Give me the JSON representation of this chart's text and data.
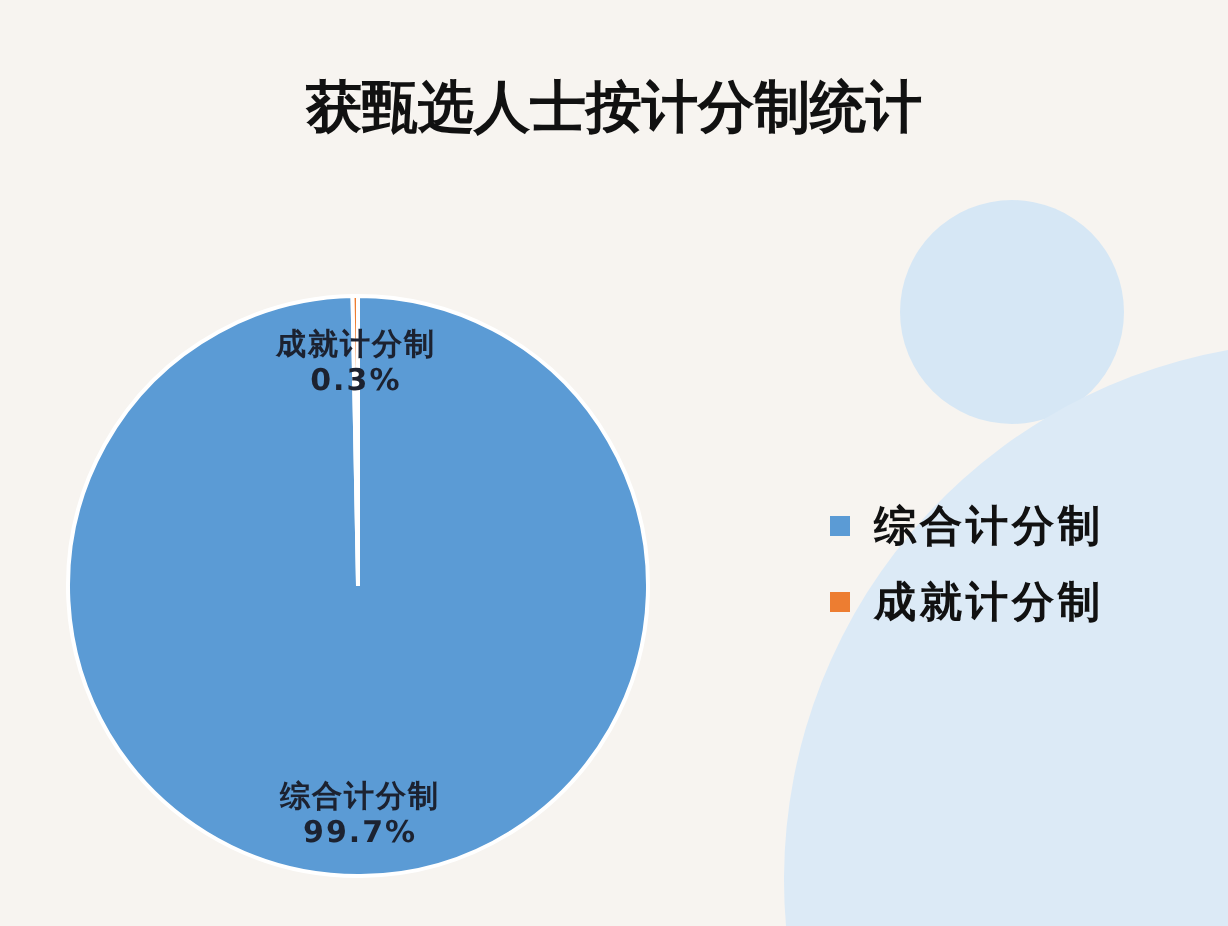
{
  "chart_data": {
    "type": "pie",
    "title": "获甄选人士按计分制统计",
    "categories": [
      "综合计分制",
      "成就计分制"
    ],
    "values": [
      99.7,
      0.3
    ],
    "colors": [
      "#5b9bd5",
      "#ed7d31"
    ],
    "value_labels": [
      "99.7%",
      "0.3%"
    ],
    "legend": "right"
  }
}
